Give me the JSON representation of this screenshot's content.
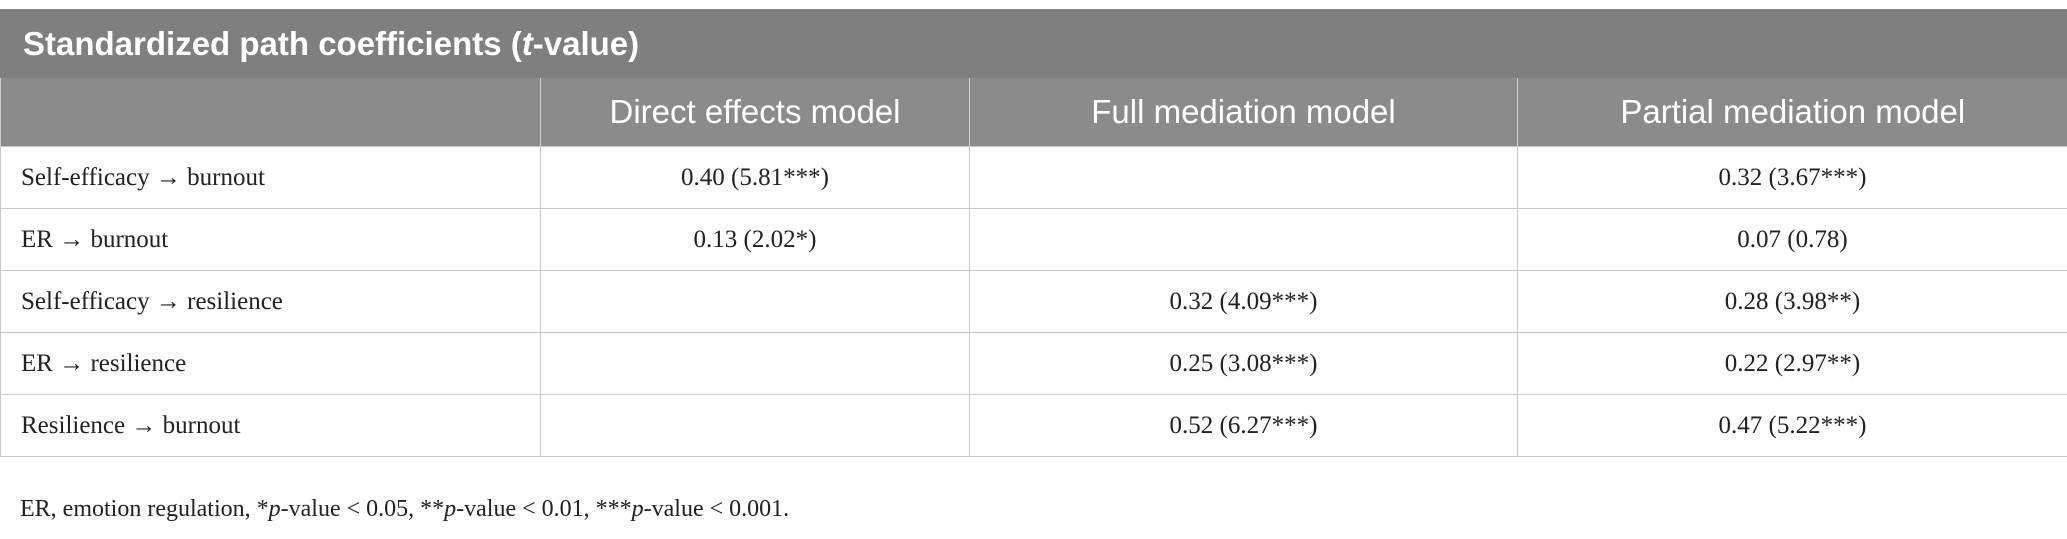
{
  "table": {
    "title_parts": [
      "Standardized path coefficients (",
      "t",
      "-value)"
    ],
    "columns": [
      null,
      "Direct effects model",
      "Full mediation model",
      "Partial mediation model"
    ],
    "rows": [
      [
        "Self-efficacy → burnout",
        "0.40 (5.81***)",
        null,
        "0.32 (3.67***)"
      ],
      [
        "ER → burnout",
        "0.13 (2.02*)",
        null,
        "0.07 (0.78)"
      ],
      [
        "Self-efficacy → resilience",
        null,
        "0.32 (4.09***)",
        "0.28 (3.98**)"
      ],
      [
        "ER → resilience",
        null,
        "0.25 (3.08***)",
        "0.22 (2.97**)"
      ],
      [
        "Resilience → burnout",
        null,
        "0.52 (6.27***)",
        "0.47 (5.22***)"
      ]
    ]
  },
  "footnote_parts": [
    "ER, emotion regulation, *",
    "p",
    "-value < 0.05, **",
    "p",
    "-value < 0.01, ***",
    "p",
    "-value < 0.001."
  ]
}
